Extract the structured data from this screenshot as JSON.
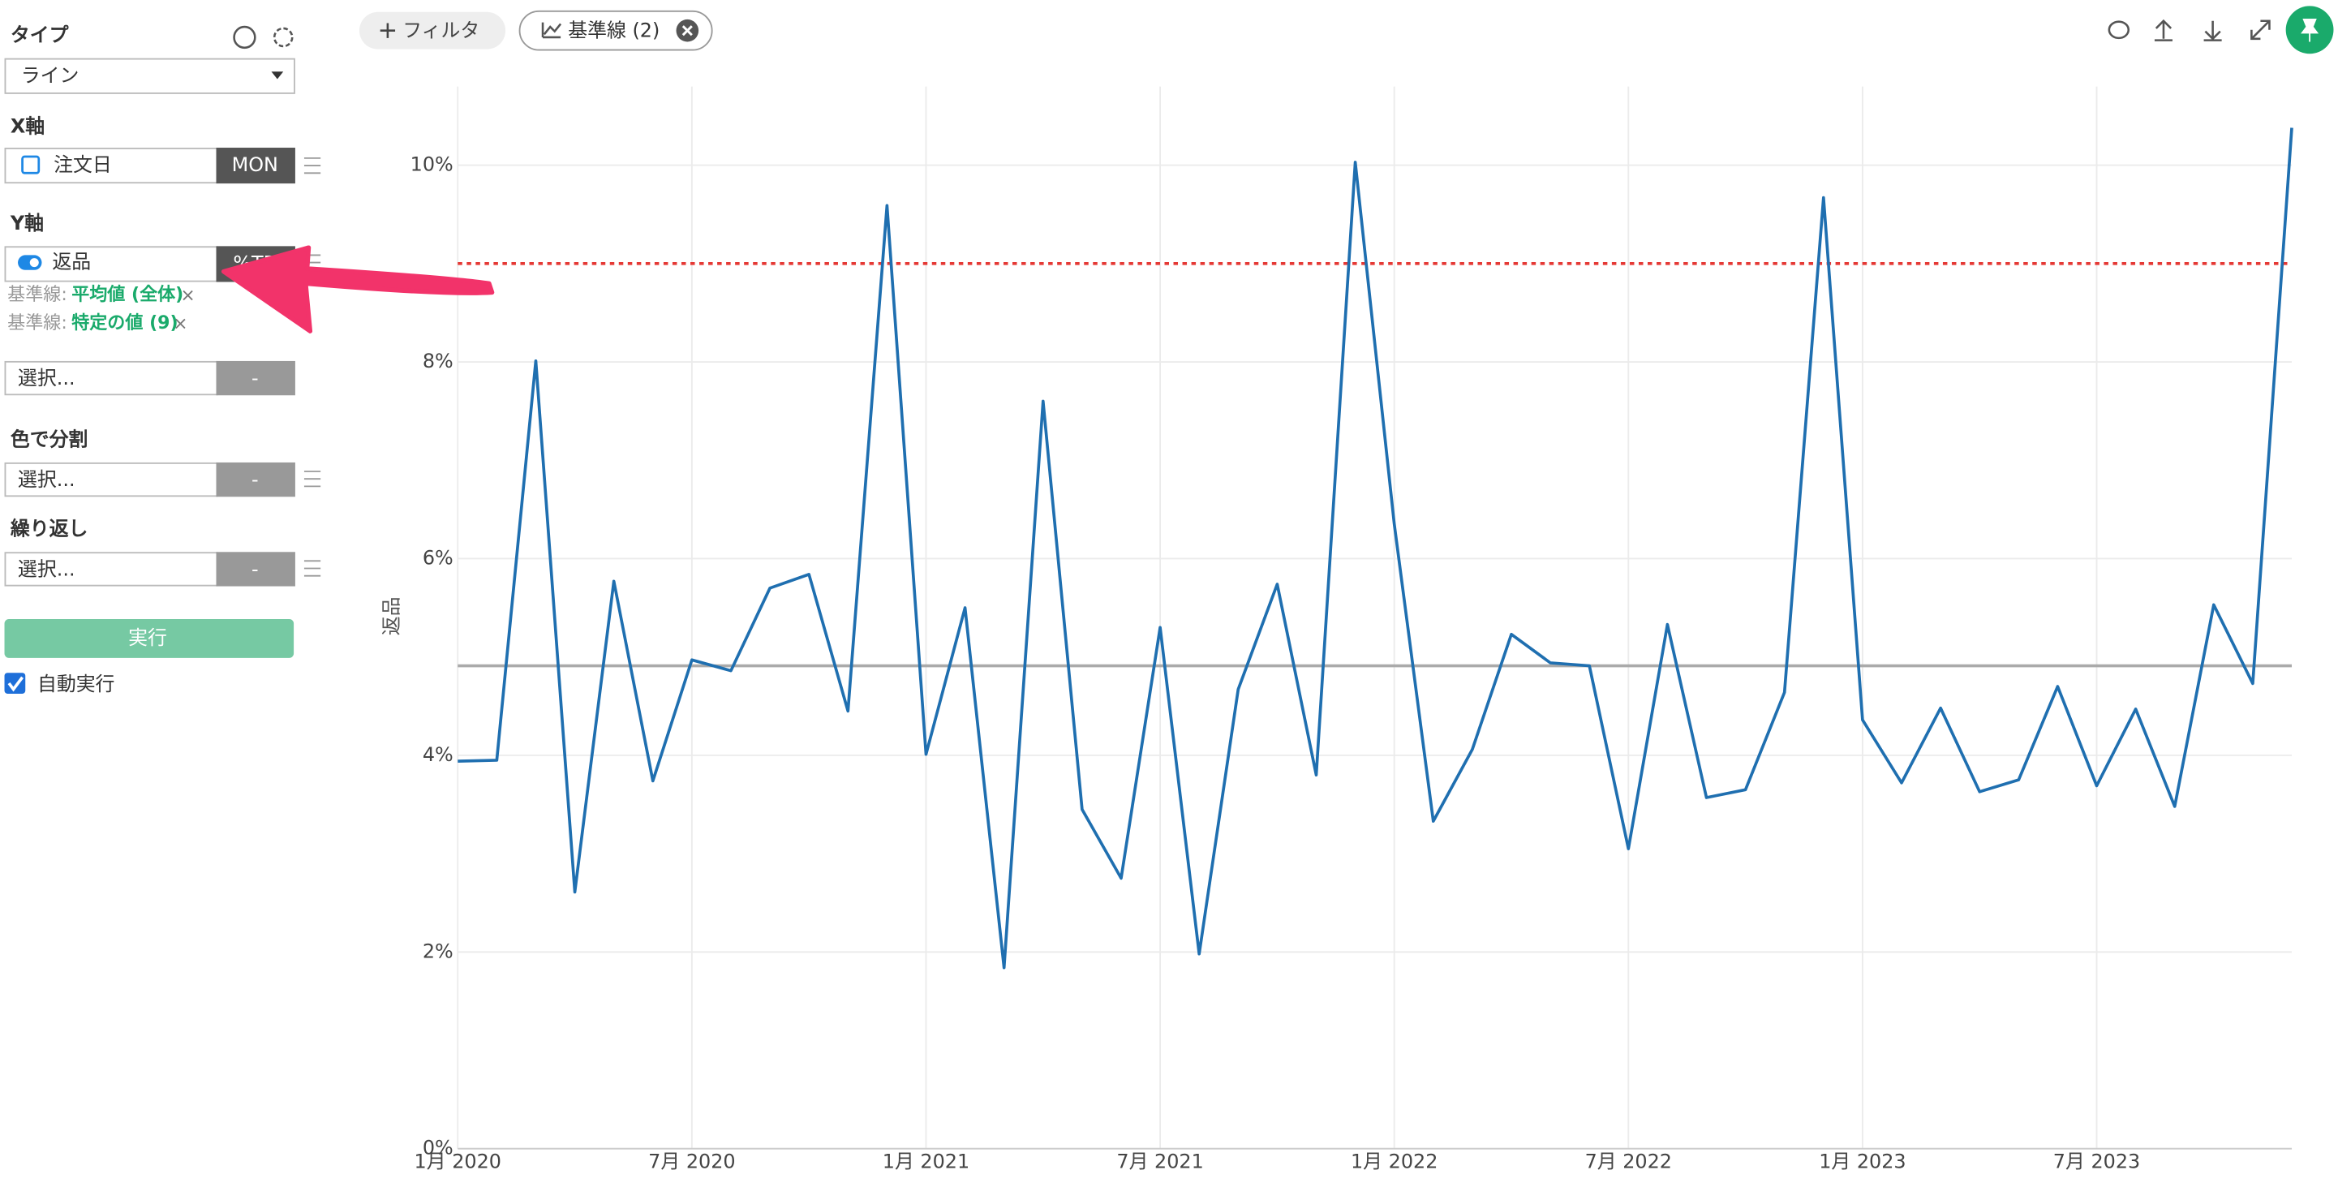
{
  "sidebar": {
    "type_label": "タイプ",
    "type_value": "ライン",
    "x_label": "X軸",
    "x_field": "注文日",
    "x_agg": "MON",
    "y_label": "Y軸",
    "y_field": "返品",
    "y_agg": "%TR",
    "baseline_prefix": "基準線:",
    "select1_placeholder": "選択...",
    "select1_agg": "-",
    "color_label": "色で分割",
    "color_placeholder": "選択...",
    "color_agg": "-",
    "repeat_label": "繰り返し",
    "repeat_placeholder": "選択...",
    "repeat_agg": "-",
    "run_button": "実行",
    "auto_run": "自動実行"
  },
  "toolbar": {
    "filter": "フィルタ",
    "baseline_chip": "基準線 (2)"
  },
  "chart_data": {
    "type": "line",
    "ylabel": "返品",
    "color": "#1f6fb0",
    "x": [
      "2020-01",
      "2020-02",
      "2020-03",
      "2020-04",
      "2020-05",
      "2020-06",
      "2020-07",
      "2020-08",
      "2020-09",
      "2020-10",
      "2020-11",
      "2020-12",
      "2021-01",
      "2021-02",
      "2021-03",
      "2021-04",
      "2021-05",
      "2021-06",
      "2021-07",
      "2021-08",
      "2021-09",
      "2021-10",
      "2021-11",
      "2021-12",
      "2022-01",
      "2022-02",
      "2022-03",
      "2022-04",
      "2022-05",
      "2022-06",
      "2022-07",
      "2022-08",
      "2022-09",
      "2022-10",
      "2022-11",
      "2022-12",
      "2023-01",
      "2023-02",
      "2023-03",
      "2023-04",
      "2023-05",
      "2023-06",
      "2023-07",
      "2023-08",
      "2023-09",
      "2023-10",
      "2023-11",
      "2023-12"
    ],
    "values": [
      3.94,
      3.95,
      8.01,
      2.61,
      5.77,
      3.74,
      4.97,
      4.86,
      5.7,
      5.84,
      4.45,
      9.59,
      4.01,
      5.5,
      1.84,
      7.6,
      3.45,
      2.75,
      5.3,
      1.98,
      4.67,
      5.74,
      3.8,
      10.03,
      6.35,
      3.33,
      4.06,
      5.23,
      4.94,
      4.91,
      3.05,
      5.33,
      3.57,
      3.65,
      4.64,
      9.67,
      4.36,
      3.72,
      4.48,
      3.63,
      3.75,
      4.7,
      3.69,
      4.47,
      3.48,
      5.53,
      4.73,
      10.38
    ],
    "xlim": [
      "2020-01",
      "2023-12"
    ],
    "xticks": [
      {
        "value": "2020-01",
        "label": "1月 2020"
      },
      {
        "value": "2020-07",
        "label": "7月 2020"
      },
      {
        "value": "2021-01",
        "label": "1月 2021"
      },
      {
        "value": "2021-07",
        "label": "7月 2021"
      },
      {
        "value": "2022-01",
        "label": "1月 2022"
      },
      {
        "value": "2022-07",
        "label": "7月 2022"
      },
      {
        "value": "2023-01",
        "label": "1月 2023"
      },
      {
        "value": "2023-07",
        "label": "7月 2023"
      }
    ],
    "ylim": [
      0,
      10.8
    ],
    "yticks": [
      {
        "value": 0,
        "label": "0%"
      },
      {
        "value": 2,
        "label": "2%"
      },
      {
        "value": 4,
        "label": "4%"
      },
      {
        "value": 6,
        "label": "6%"
      },
      {
        "value": 8,
        "label": "8%"
      },
      {
        "value": 10,
        "label": "10%"
      }
    ],
    "grid": true,
    "baselines": [
      {
        "name": "平均値 (全体)",
        "value": 4.91,
        "color": "#aaaaaa",
        "style": "solid"
      },
      {
        "name": "特定の値 (9)",
        "value": 9,
        "color": "#e53935",
        "style": "dotted"
      }
    ]
  }
}
